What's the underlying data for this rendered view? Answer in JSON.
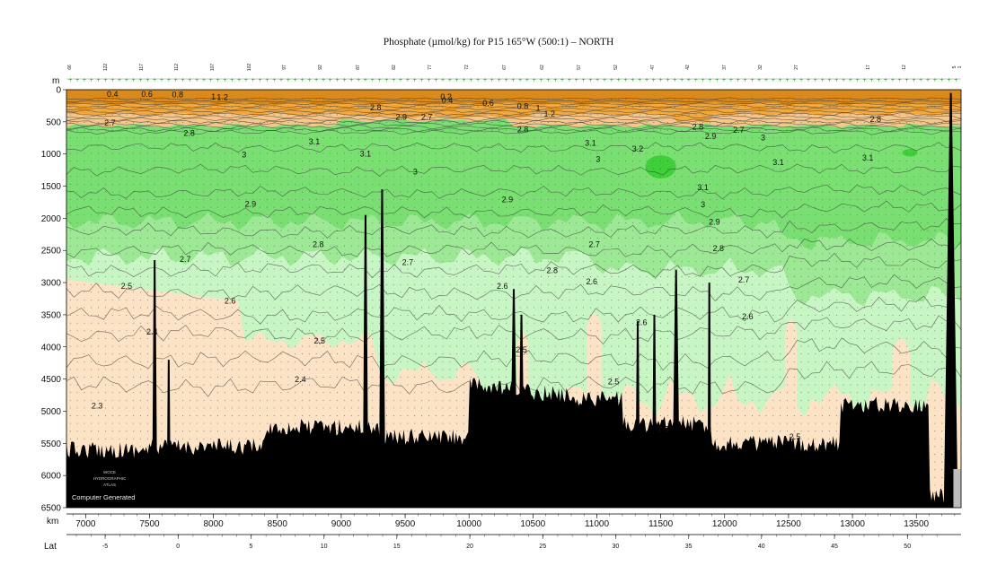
{
  "chart_data": {
    "type": "heatmap",
    "title": "Phosphate (µmol/kg) for P15 165°W (500:1) – NORTH",
    "depth_axis": {
      "label": "m",
      "range": [
        0,
        6500
      ],
      "ticks": [
        0,
        500,
        1000,
        1500,
        2000,
        2500,
        3000,
        3500,
        4000,
        4500,
        5000,
        5500,
        6000,
        6500
      ],
      "inverted": true
    },
    "km_axis": {
      "label": "km",
      "range": [
        6850,
        13850
      ],
      "ticks": [
        7000,
        7500,
        8000,
        8500,
        9000,
        9500,
        10000,
        10500,
        11000,
        11500,
        12000,
        12500,
        13000,
        13500
      ]
    },
    "lat_axis": {
      "label": "Lat",
      "ticks": [
        -5,
        0,
        5,
        10,
        15,
        20,
        25,
        30,
        35,
        40,
        45,
        50
      ],
      "tick_km": [
        7180,
        7460,
        7740,
        8020,
        8300,
        8580,
        8860,
        9140,
        9420,
        9700,
        9980,
        10260
      ]
    },
    "station_numbers": [
      {
        "label": "66",
        "km": 6880
      },
      {
        "label": "122",
        "km": 7120
      },
      {
        "label": "117",
        "km": 7350
      },
      {
        "label": "112",
        "km": 7570
      },
      {
        "label": "107",
        "km": 7790
      },
      {
        "label": "102",
        "km": 8020
      },
      {
        "label": "97",
        "km": 8250
      },
      {
        "label": "92",
        "km": 8480
      },
      {
        "label": "87",
        "km": 8700
      },
      {
        "label": "82",
        "km": 8930
      },
      {
        "label": "77",
        "km": 9170
      },
      {
        "label": "72",
        "km": 9390
      },
      {
        "label": "67",
        "km": 9620
      },
      {
        "label": "62",
        "km": 9840
      },
      {
        "label": "57",
        "km": 10080
      },
      {
        "label": "52",
        "km": 10310
      },
      {
        "label": "47",
        "km": 10540
      },
      {
        "label": "42",
        "km": 10760
      },
      {
        "label": "37",
        "km": 10990
      },
      {
        "label": "32",
        "km": 11220
      },
      {
        "label": "27",
        "km": 11440
      },
      {
        "label": "17",
        "km": 11900
      },
      {
        "label": "12",
        "km": 12140
      },
      {
        "label": "5",
        "km": 12580
      },
      {
        "label": "1",
        "km": 12660
      }
    ],
    "color_levels": [
      {
        "max": 0.6,
        "color": "#d98a1a"
      },
      {
        "max": 1.2,
        "color": "#f2a83d"
      },
      {
        "max": 2.0,
        "color": "#f7c78a"
      },
      {
        "max": 2.5,
        "color": "#fce3c6"
      },
      {
        "max": 2.7,
        "color": "#c8f5c4"
      },
      {
        "max": 2.9,
        "color": "#9de894"
      },
      {
        "max": 3.1,
        "color": "#7adf72"
      },
      {
        "max": 3.3,
        "color": "#3fcf3a"
      }
    ],
    "contour_labels": [
      {
        "text": "0.4",
        "km": 7210,
        "depth": 110
      },
      {
        "text": "0.6",
        "km": 7480,
        "depth": 110
      },
      {
        "text": "0.8",
        "km": 7720,
        "depth": 120
      },
      {
        "text": "1",
        "km": 8000,
        "depth": 150
      },
      {
        "text": "1.2",
        "km": 8070,
        "depth": 160
      },
      {
        "text": "2.8",
        "km": 9270,
        "depth": 320
      },
      {
        "text": "2.9",
        "km": 9470,
        "depth": 470
      },
      {
        "text": "2.7",
        "km": 9670,
        "depth": 470
      },
      {
        "text": "0.2",
        "km": 9820,
        "depth": 150
      },
      {
        "text": "0.4",
        "km": 9830,
        "depth": 210
      },
      {
        "text": "0.6",
        "km": 10150,
        "depth": 250
      },
      {
        "text": "0.8",
        "km": 10420,
        "depth": 300
      },
      {
        "text": "1",
        "km": 10540,
        "depth": 330
      },
      {
        "text": "1.2",
        "km": 10630,
        "depth": 420
      },
      {
        "text": "2.8",
        "km": 10420,
        "depth": 660
      },
      {
        "text": "3.1",
        "km": 10950,
        "depth": 870
      },
      {
        "text": "3",
        "km": 11010,
        "depth": 1120
      },
      {
        "text": "3.2",
        "km": 11320,
        "depth": 960
      },
      {
        "text": "2.8",
        "km": 11790,
        "depth": 620
      },
      {
        "text": "2.9",
        "km": 11890,
        "depth": 770
      },
      {
        "text": "2.7",
        "km": 12110,
        "depth": 670
      },
      {
        "text": "3",
        "km": 12300,
        "depth": 790
      },
      {
        "text": "3.1",
        "km": 12420,
        "depth": 1170
      },
      {
        "text": "3.1",
        "km": 11830,
        "depth": 1560
      },
      {
        "text": "3",
        "km": 11830,
        "depth": 1830
      },
      {
        "text": "2.9",
        "km": 11920,
        "depth": 2100
      },
      {
        "text": "2.8",
        "km": 11950,
        "depth": 2510
      },
      {
        "text": "2.7",
        "km": 12150,
        "depth": 3000
      },
      {
        "text": "2.6",
        "km": 12180,
        "depth": 3570
      },
      {
        "text": "2.8",
        "km": 13180,
        "depth": 500
      },
      {
        "text": "3.1",
        "km": 13120,
        "depth": 1100
      },
      {
        "text": "2.7",
        "km": 7190,
        "depth": 560
      },
      {
        "text": "2.8",
        "km": 7810,
        "depth": 720
      },
      {
        "text": "3.1",
        "km": 8790,
        "depth": 850
      },
      {
        "text": "3",
        "km": 8240,
        "depth": 1050
      },
      {
        "text": "3.1",
        "km": 9190,
        "depth": 1040
      },
      {
        "text": "3",
        "km": 9580,
        "depth": 1320
      },
      {
        "text": "2.9",
        "km": 8290,
        "depth": 1820
      },
      {
        "text": "2.9",
        "km": 10300,
        "depth": 1750
      },
      {
        "text": "2.8",
        "km": 8820,
        "depth": 2450
      },
      {
        "text": "2.7",
        "km": 7780,
        "depth": 2680
      },
      {
        "text": "2.7",
        "km": 9520,
        "depth": 2730
      },
      {
        "text": "2.8",
        "km": 10650,
        "depth": 2850
      },
      {
        "text": "2.7",
        "km": 10980,
        "depth": 2450
      },
      {
        "text": "2.6",
        "km": 10960,
        "depth": 3030
      },
      {
        "text": "2.6",
        "km": 10260,
        "depth": 3100
      },
      {
        "text": "2.5",
        "km": 7320,
        "depth": 3100
      },
      {
        "text": "2.6",
        "km": 8130,
        "depth": 3330
      },
      {
        "text": "2.4",
        "km": 7520,
        "depth": 3810
      },
      {
        "text": "2.5",
        "km": 8830,
        "depth": 3950
      },
      {
        "text": "2.5",
        "km": 10410,
        "depth": 4090
      },
      {
        "text": "2.6",
        "km": 11350,
        "depth": 3660
      },
      {
        "text": "2.4",
        "km": 8680,
        "depth": 4550
      },
      {
        "text": "2.5",
        "km": 11130,
        "depth": 4580
      },
      {
        "text": "2.3",
        "km": 7090,
        "depth": 4960
      },
      {
        "text": "2.5",
        "km": 11520,
        "depth": 5320
      },
      {
        "text": "2.5",
        "km": 12550,
        "depth": 5440
      }
    ]
  },
  "logo": {
    "lines": [
      "WOCE",
      "HYDROGRAPHIC",
      "ATLAS"
    ],
    "caption": "Computer Generated"
  }
}
